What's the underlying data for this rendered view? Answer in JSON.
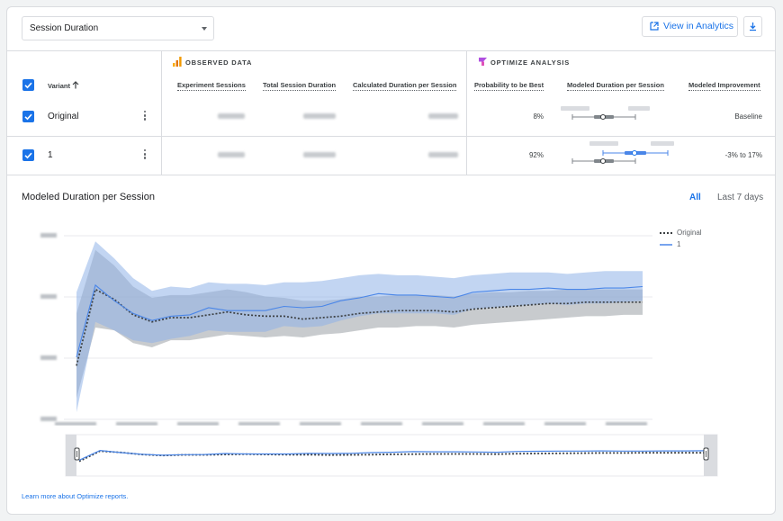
{
  "metric_select": {
    "value": "Session Duration"
  },
  "toolbar": {
    "analytics_label": "View in Analytics",
    "download_icon": "download-icon",
    "external_icon": "open-in-new-icon"
  },
  "sections": {
    "observed": "OBSERVED DATA",
    "optimize": "OPTIMIZE ANALYSIS"
  },
  "columns": {
    "variant": "Variant",
    "experiment_sessions": "Experiment Sessions",
    "total_session_duration": "Total Session Duration",
    "calculated_duration": "Calculated Duration per Session",
    "probability_best": "Probability to be Best",
    "modeled_duration": "Modeled Duration per Session",
    "modeled_improvement": "Modeled Improvement"
  },
  "rows": [
    {
      "name": "Original",
      "probability": "8%",
      "improvement": "Baseline",
      "checked": true
    },
    {
      "name": "1",
      "probability": "92%",
      "improvement": "-3% to 17%",
      "checked": true
    }
  ],
  "chart": {
    "title": "Modeled Duration per Session",
    "range_all": "All",
    "range_7": "Last 7 days",
    "legend": [
      "Original",
      "1"
    ]
  },
  "colors": {
    "accent": "#1a73e8",
    "original_band": "#9aa0a6",
    "variant_band": "#8fb2e8",
    "original_line": "#3c4043",
    "variant_line": "#4a86e8"
  },
  "footer": {
    "link": "Learn more about Optimize reports."
  },
  "chart_data": {
    "type": "line",
    "title": "Modeled Duration per Session",
    "x_index": [
      0,
      1,
      2,
      3,
      4,
      5,
      6,
      7,
      8,
      9,
      10,
      11,
      12,
      13,
      14,
      15,
      16,
      17,
      18,
      19,
      20,
      21,
      22,
      23,
      24,
      25,
      26,
      27,
      28,
      29,
      30
    ],
    "series": [
      {
        "name": "Original",
        "style": "dotted",
        "values": [
          0.08,
          0.62,
          0.55,
          0.44,
          0.39,
          0.42,
          0.42,
          0.44,
          0.46,
          0.44,
          0.43,
          0.43,
          0.41,
          0.42,
          0.43,
          0.45,
          0.46,
          0.47,
          0.47,
          0.47,
          0.46,
          0.48,
          0.49,
          0.5,
          0.51,
          0.52,
          0.52,
          0.53,
          0.53,
          0.53,
          0.53
        ],
        "band_upper": [
          0.45,
          0.9,
          0.79,
          0.64,
          0.56,
          0.58,
          0.58,
          0.6,
          0.62,
          0.6,
          0.57,
          0.56,
          0.54,
          0.54,
          0.55,
          0.57,
          0.57,
          0.58,
          0.58,
          0.58,
          0.57,
          0.59,
          0.6,
          0.6,
          0.61,
          0.61,
          0.62,
          0.62,
          0.62,
          0.62,
          0.62
        ],
        "band_lower": [
          -0.15,
          0.35,
          0.33,
          0.24,
          0.21,
          0.26,
          0.26,
          0.28,
          0.3,
          0.29,
          0.28,
          0.29,
          0.28,
          0.3,
          0.31,
          0.33,
          0.35,
          0.35,
          0.36,
          0.36,
          0.35,
          0.37,
          0.38,
          0.39,
          0.4,
          0.41,
          0.42,
          0.43,
          0.43,
          0.44,
          0.44
        ]
      },
      {
        "name": "1",
        "style": "solid",
        "values": [
          0.14,
          0.65,
          0.54,
          0.45,
          0.4,
          0.43,
          0.44,
          0.49,
          0.47,
          0.47,
          0.47,
          0.5,
          0.49,
          0.5,
          0.54,
          0.56,
          0.59,
          0.58,
          0.58,
          0.57,
          0.56,
          0.6,
          0.61,
          0.62,
          0.62,
          0.63,
          0.62,
          0.62,
          0.63,
          0.63,
          0.64
        ],
        "band_upper": [
          0.6,
          0.96,
          0.84,
          0.7,
          0.61,
          0.64,
          0.63,
          0.67,
          0.66,
          0.66,
          0.65,
          0.67,
          0.67,
          0.68,
          0.7,
          0.72,
          0.73,
          0.72,
          0.72,
          0.71,
          0.7,
          0.72,
          0.73,
          0.74,
          0.74,
          0.74,
          0.73,
          0.74,
          0.75,
          0.75,
          0.75
        ],
        "band_lower": [
          -0.25,
          0.39,
          0.33,
          0.26,
          0.24,
          0.27,
          0.29,
          0.33,
          0.32,
          0.32,
          0.32,
          0.36,
          0.35,
          0.36,
          0.4,
          0.43,
          0.45,
          0.45,
          0.45,
          0.45,
          0.44,
          0.48,
          0.49,
          0.5,
          0.51,
          0.52,
          0.51,
          0.52,
          0.52,
          0.53,
          0.54
        ]
      }
    ],
    "grid": true,
    "legend_position": "top-right"
  }
}
